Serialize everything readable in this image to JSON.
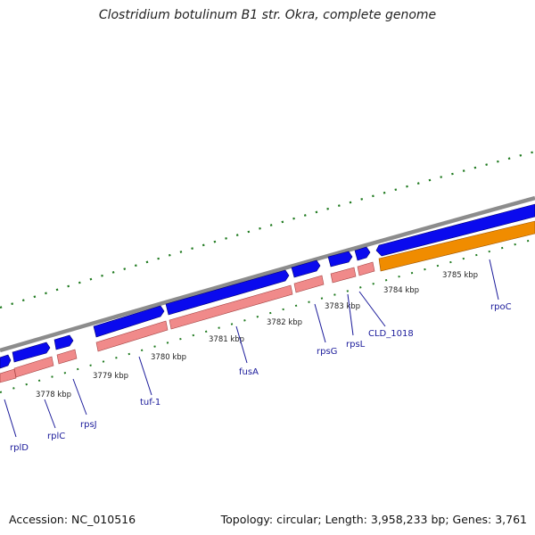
{
  "title": "Clostridium botulinum B1 str. Okra, complete genome",
  "footer": {
    "accession": "Accession: NC_010516",
    "topology": "Topology: circular; Length: 3,958,233 bp; Genes: 3,761"
  },
  "colors": {
    "backbone": "#8c8c8c",
    "forward_gene": "#0a0aee",
    "cds": "#f08a8a",
    "rrna_orange": "#f08c00",
    "tick": "#1f7a1f",
    "label": "#1a1a9a"
  },
  "tick_labels": [
    "3778 kbp",
    "3779 kbp",
    "3780 kbp",
    "3781 kbp",
    "3782 kbp",
    "3783 kbp",
    "3784 kbp",
    "3785 kbp"
  ],
  "gene_labels": [
    "rplD",
    "rplC",
    "rpsJ",
    "tuf-1",
    "fusA",
    "rpsG",
    "rpsL",
    "CLD_1018",
    "rpoC"
  ]
}
